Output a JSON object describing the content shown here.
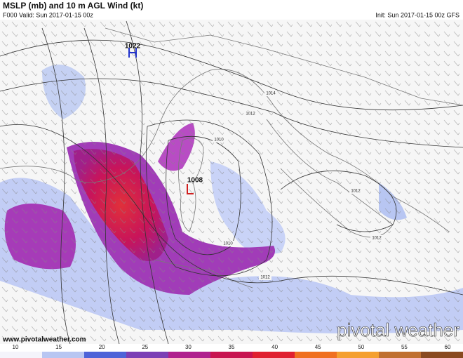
{
  "header": {
    "title": "MSLP (mb) and 10 m AGL Wind (kt)",
    "valid": "F000 Valid: Sun 2017-01-15 00z",
    "init": "Init: Sun 2017-01-15 00z GFS"
  },
  "pressure_centers": [
    {
      "symbol": "H",
      "value": "1022"
    },
    {
      "symbol": "L",
      "value": "1008"
    }
  ],
  "isobar_labels": [
    "1014",
    "1012",
    "1010",
    "1012",
    "1012",
    "1010",
    "1012"
  ],
  "footer": {
    "website": "www.pivotalweather.com",
    "logo": "pivotal weather"
  },
  "colorbar": {
    "ticks": [
      10,
      15,
      20,
      25,
      30,
      35,
      40,
      45,
      50,
      55,
      60
    ]
  }
}
